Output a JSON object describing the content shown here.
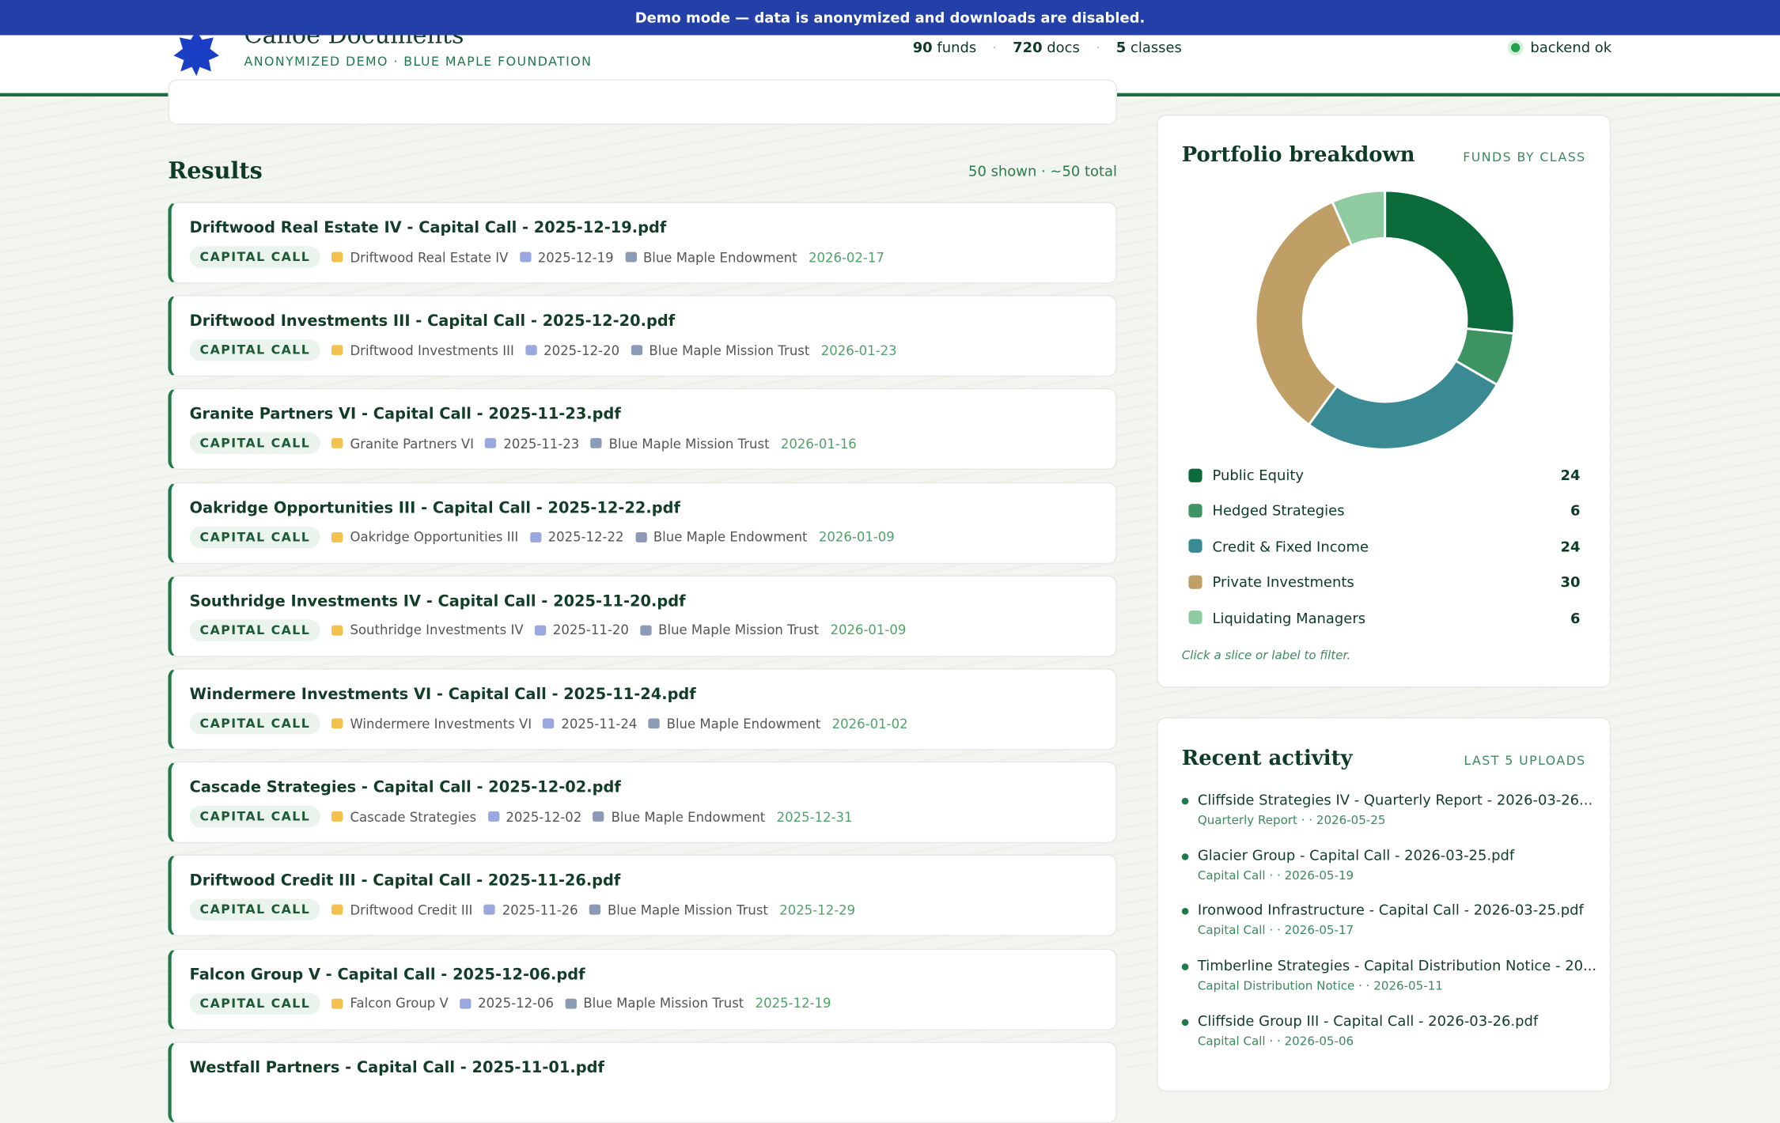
{
  "banner": "Demo mode — data is anonymized and downloads are disabled.",
  "header": {
    "title": "Canoe Documents",
    "subtitle": "ANONYMIZED DEMO · BLUE MAPLE FOUNDATION",
    "stats": [
      {
        "value": 90,
        "label": "funds"
      },
      {
        "value": 720,
        "label": "docs"
      },
      {
        "value": 5,
        "label": "classes"
      }
    ],
    "status": "backend ok"
  },
  "results": {
    "title": "Results",
    "count": "50 shown · ~50 total",
    "items": [
      {
        "title": "Driftwood Real Estate IV - Capital Call - 2025-12-19.pdf",
        "tag": "CAPITAL CALL",
        "fund": "Driftwood Real Estate IV",
        "date": "2025-12-19",
        "entity": "Blue Maple Endowment",
        "uploaded": "2026-02-17"
      },
      {
        "title": "Driftwood Investments III - Capital Call - 2025-12-20.pdf",
        "tag": "CAPITAL CALL",
        "fund": "Driftwood Investments III",
        "date": "2025-12-20",
        "entity": "Blue Maple Mission Trust",
        "uploaded": "2026-01-23"
      },
      {
        "title": "Granite Partners VI - Capital Call - 2025-11-23.pdf",
        "tag": "CAPITAL CALL",
        "fund": "Granite Partners VI",
        "date": "2025-11-23",
        "entity": "Blue Maple Mission Trust",
        "uploaded": "2026-01-16"
      },
      {
        "title": "Oakridge Opportunities III - Capital Call - 2025-12-22.pdf",
        "tag": "CAPITAL CALL",
        "fund": "Oakridge Opportunities III",
        "date": "2025-12-22",
        "entity": "Blue Maple Endowment",
        "uploaded": "2026-01-09"
      },
      {
        "title": "Southridge Investments IV - Capital Call - 2025-11-20.pdf",
        "tag": "CAPITAL CALL",
        "fund": "Southridge Investments IV",
        "date": "2025-11-20",
        "entity": "Blue Maple Mission Trust",
        "uploaded": "2026-01-09"
      },
      {
        "title": "Windermere Investments VI - Capital Call - 2025-11-24.pdf",
        "tag": "CAPITAL CALL",
        "fund": "Windermere Investments VI",
        "date": "2025-11-24",
        "entity": "Blue Maple Endowment",
        "uploaded": "2026-01-02"
      },
      {
        "title": "Cascade Strategies - Capital Call - 2025-12-02.pdf",
        "tag": "CAPITAL CALL",
        "fund": "Cascade Strategies",
        "date": "2025-12-02",
        "entity": "Blue Maple Endowment",
        "uploaded": "2025-12-31"
      },
      {
        "title": "Driftwood Credit III - Capital Call - 2025-11-26.pdf",
        "tag": "CAPITAL CALL",
        "fund": "Driftwood Credit III",
        "date": "2025-11-26",
        "entity": "Blue Maple Mission Trust",
        "uploaded": "2025-12-29"
      },
      {
        "title": "Falcon Group V - Capital Call - 2025-12-06.pdf",
        "tag": "CAPITAL CALL",
        "fund": "Falcon Group V",
        "date": "2025-12-06",
        "entity": "Blue Maple Mission Trust",
        "uploaded": "2025-12-19"
      },
      {
        "title": "Westfall Partners - Capital Call - 2025-11-01.pdf"
      }
    ]
  },
  "portfolio": {
    "title": "Portfolio breakdown",
    "tag": "FUNDS BY CLASS",
    "hint": "Click a slice or label to filter.",
    "chart_data": {
      "type": "pie",
      "categories": [
        "Public Equity",
        "Hedged Strategies",
        "Credit & Fixed Income",
        "Private Investments",
        "Liquidating Managers"
      ],
      "values": [
        24,
        6,
        24,
        30,
        6
      ],
      "colors": [
        "#0b6b3a",
        "#3d9462",
        "#3a8a94",
        "#bf9f66",
        "#8fcba0"
      ]
    }
  },
  "activity": {
    "title": "Recent activity",
    "tag": "LAST 5 UPLOADS",
    "items": [
      {
        "title": "Cliffside Strategies IV - Quarterly Report - 2026-03-26...",
        "meta": "Quarterly Report · · 2026-05-25"
      },
      {
        "title": "Glacier Group - Capital Call - 2026-03-25.pdf",
        "meta": "Capital Call · · 2026-05-19"
      },
      {
        "title": "Ironwood Infrastructure - Capital Call - 2026-03-25.pdf",
        "meta": "Capital Call · · 2026-05-17"
      },
      {
        "title": "Timberline Strategies - Capital Distribution Notice - 20...",
        "meta": "Capital Distribution Notice · · 2026-05-11"
      },
      {
        "title": "Cliffside Group III - Capital Call - 2026-03-26.pdf",
        "meta": "Capital Call · · 2026-05-06"
      }
    ]
  }
}
